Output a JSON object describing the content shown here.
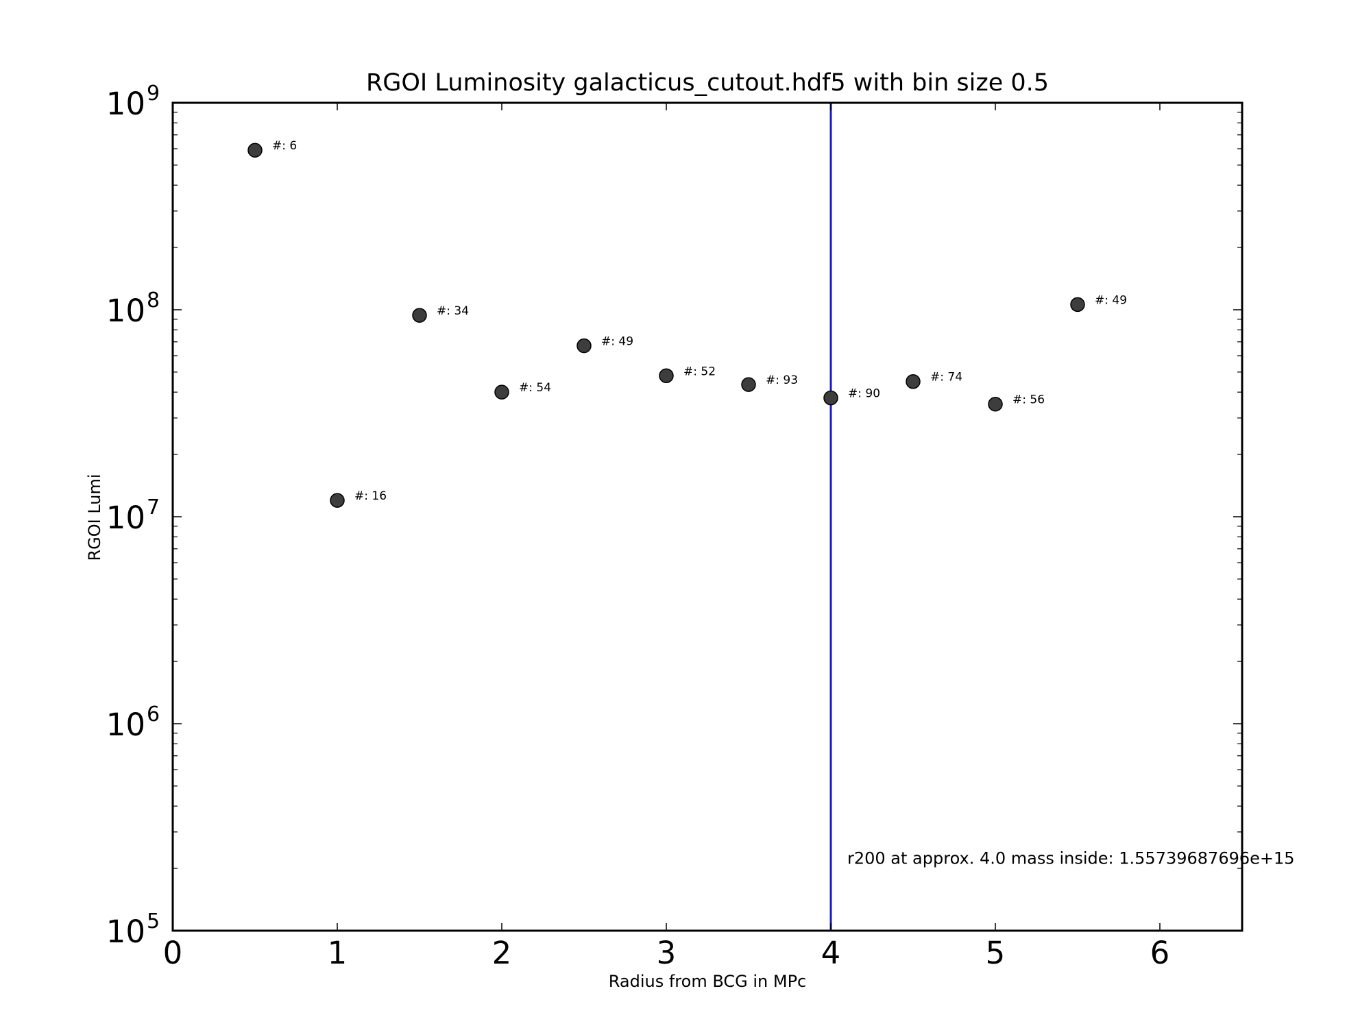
{
  "chart_data": {
    "type": "scatter",
    "title": "RGOI Luminosity galacticus_cutout.hdf5 with bin size 0.5",
    "xlabel": "Radius from BCG in MPc",
    "ylabel": "RGOI Lumi",
    "xlim": [
      0,
      6.5
    ],
    "ylim": [
      100000,
      1000000000
    ],
    "yscale": "log",
    "grid": false,
    "x_ticks": [
      {
        "value": 0,
        "label": "0"
      },
      {
        "value": 1,
        "label": "1"
      },
      {
        "value": 2,
        "label": "2"
      },
      {
        "value": 3,
        "label": "3"
      },
      {
        "value": 4,
        "label": "4"
      },
      {
        "value": 5,
        "label": "5"
      },
      {
        "value": 6,
        "label": "6"
      }
    ],
    "y_ticks": [
      {
        "value": 100000,
        "base": "10",
        "exp": "5"
      },
      {
        "value": 1000000,
        "base": "10",
        "exp": "6"
      },
      {
        "value": 10000000,
        "base": "10",
        "exp": "7"
      },
      {
        "value": 100000000,
        "base": "10",
        "exp": "8"
      },
      {
        "value": 1000000000,
        "base": "10",
        "exp": "9"
      }
    ],
    "marker_color": "#3d3d3d",
    "points": [
      {
        "x": 0.5,
        "y": 590000000,
        "label": "#: 6"
      },
      {
        "x": 1.0,
        "y": 12000000,
        "label": "#: 16"
      },
      {
        "x": 1.5,
        "y": 94000000,
        "label": "#: 34"
      },
      {
        "x": 2.0,
        "y": 40000000,
        "label": "#: 54"
      },
      {
        "x": 2.5,
        "y": 67000000,
        "label": "#: 49"
      },
      {
        "x": 3.0,
        "y": 48000000,
        "label": "#: 52"
      },
      {
        "x": 3.5,
        "y": 43500000,
        "label": "#: 93"
      },
      {
        "x": 4.0,
        "y": 37500000,
        "label": "#: 90"
      },
      {
        "x": 4.5,
        "y": 45000000,
        "label": "#: 74"
      },
      {
        "x": 5.0,
        "y": 35000000,
        "label": "#: 56"
      },
      {
        "x": 5.5,
        "y": 106000000,
        "label": "#: 49"
      }
    ],
    "vline": {
      "x": 4.0,
      "color": "#1a1acc"
    },
    "annotation": {
      "text": "r200 at approx. 4.0 mass inside: 1.55739687696e+15",
      "x": 4.1,
      "y": 210000
    }
  }
}
